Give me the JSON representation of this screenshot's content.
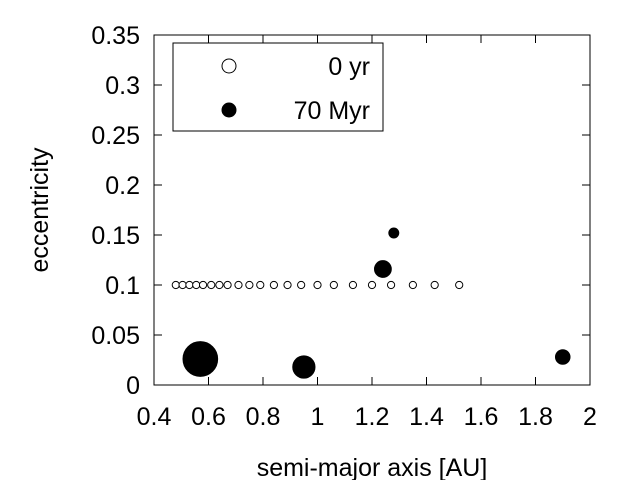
{
  "chart_data": {
    "type": "scatter",
    "title": "",
    "xlabel": "semi-major axis [AU]",
    "ylabel": "eccentricity",
    "xlim": [
      0.4,
      2
    ],
    "ylim": [
      0,
      0.35
    ],
    "xticks": [
      0.4,
      0.6,
      0.8,
      1,
      1.2,
      1.4,
      1.6,
      1.8,
      2
    ],
    "xtick_labels": [
      "0.4",
      "0.6",
      "0.8",
      "1",
      "1.2",
      "1.4",
      "1.6",
      "1.8",
      "2"
    ],
    "yticks": [
      0,
      0.05,
      0.1,
      0.15,
      0.2,
      0.25,
      0.3,
      0.35
    ],
    "ytick_labels": [
      "0",
      "0.05",
      "0.1",
      "0.15",
      "0.2",
      "0.25",
      "0.3",
      "0.35"
    ],
    "grid": false,
    "legend_position": "top-left",
    "series": [
      {
        "name": "0 yr",
        "marker": "open-circle",
        "color": "#000000",
        "points": [
          {
            "x": 0.48,
            "y": 0.1,
            "mass": 1
          },
          {
            "x": 0.505,
            "y": 0.1,
            "mass": 1
          },
          {
            "x": 0.53,
            "y": 0.1,
            "mass": 1
          },
          {
            "x": 0.555,
            "y": 0.1,
            "mass": 1
          },
          {
            "x": 0.58,
            "y": 0.1,
            "mass": 1
          },
          {
            "x": 0.61,
            "y": 0.1,
            "mass": 1
          },
          {
            "x": 0.64,
            "y": 0.1,
            "mass": 1
          },
          {
            "x": 0.67,
            "y": 0.1,
            "mass": 1
          },
          {
            "x": 0.71,
            "y": 0.1,
            "mass": 1
          },
          {
            "x": 0.75,
            "y": 0.1,
            "mass": 1
          },
          {
            "x": 0.79,
            "y": 0.1,
            "mass": 1
          },
          {
            "x": 0.84,
            "y": 0.1,
            "mass": 1
          },
          {
            "x": 0.89,
            "y": 0.1,
            "mass": 1
          },
          {
            "x": 0.94,
            "y": 0.1,
            "mass": 1
          },
          {
            "x": 1.0,
            "y": 0.1,
            "mass": 1
          },
          {
            "x": 1.06,
            "y": 0.1,
            "mass": 1
          },
          {
            "x": 1.13,
            "y": 0.1,
            "mass": 1
          },
          {
            "x": 1.2,
            "y": 0.1,
            "mass": 1
          },
          {
            "x": 1.27,
            "y": 0.1,
            "mass": 1
          },
          {
            "x": 1.35,
            "y": 0.1,
            "mass": 1
          },
          {
            "x": 1.43,
            "y": 0.1,
            "mass": 1
          },
          {
            "x": 1.52,
            "y": 0.1,
            "mass": 1
          }
        ]
      },
      {
        "name": "70 Myr",
        "marker": "filled-circle",
        "color": "#000000",
        "points": [
          {
            "x": 0.57,
            "y": 0.026,
            "mass": 17
          },
          {
            "x": 0.95,
            "y": 0.018,
            "mass": 7
          },
          {
            "x": 1.24,
            "y": 0.116,
            "mass": 4
          },
          {
            "x": 1.28,
            "y": 0.152,
            "mass": 1.4
          },
          {
            "x": 1.9,
            "y": 0.028,
            "mass": 3
          }
        ]
      }
    ]
  }
}
